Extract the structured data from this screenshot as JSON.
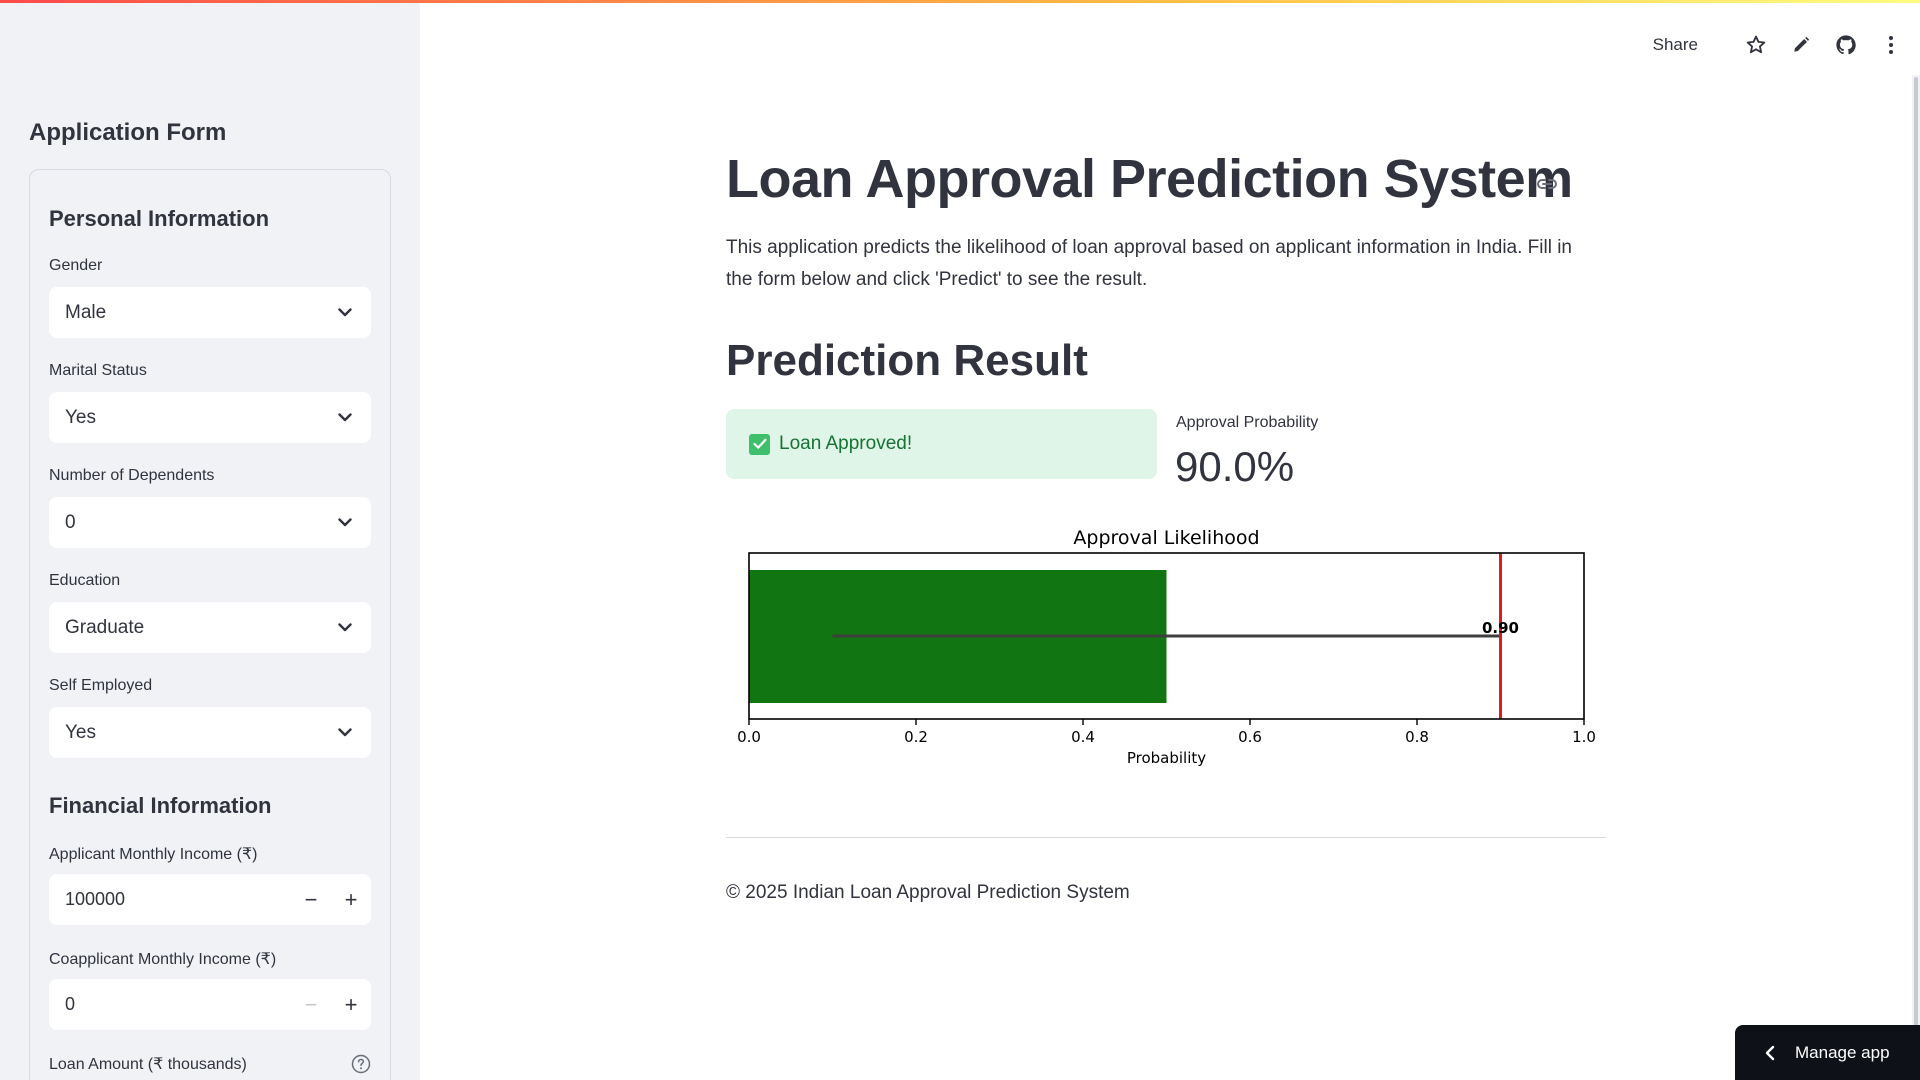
{
  "sidebar": {
    "title": "Application Form",
    "personal_heading": "Personal Information",
    "gender": {
      "label": "Gender",
      "value": "Male"
    },
    "marital": {
      "label": "Marital Status",
      "value": "Yes"
    },
    "dependents": {
      "label": "Number of Dependents",
      "value": "0"
    },
    "education": {
      "label": "Education",
      "value": "Graduate"
    },
    "self_employed": {
      "label": "Self Employed",
      "value": "Yes"
    },
    "financial_heading": "Financial Information",
    "applicant_income": {
      "label": "Applicant Monthly Income (₹)",
      "value": "100000"
    },
    "coapplicant_income": {
      "label": "Coapplicant Monthly Income (₹)",
      "value": "0"
    },
    "loan_amount": {
      "label": "Loan Amount (₹ thousands)"
    }
  },
  "toolbar": {
    "share_label": "Share"
  },
  "main": {
    "title": "Loan Approval Prediction System",
    "description": "This application predicts the likelihood of loan approval based on applicant information in India. Fill in the form below and click 'Predict' to see the result.",
    "result_heading": "Prediction Result",
    "alert_text": "Loan Approved!",
    "metric_label": "Approval Probability",
    "metric_value": "90.0%",
    "footer": "© 2025 Indian Loan Approval Prediction System"
  },
  "manage_app_label": "Manage app",
  "colors": {
    "bar": "#117511",
    "marker": "#e01b1b",
    "success_bg": "#dff5e8",
    "success_text": "#177233"
  },
  "chart_data": {
    "type": "bar",
    "orientation": "horizontal",
    "title": "Approval Likelihood",
    "xlabel": "Probability",
    "ylabel": "",
    "xlim": [
      0.0,
      1.0
    ],
    "xticks": [
      "0.0",
      "0.2",
      "0.4",
      "0.6",
      "0.8",
      "1.0"
    ],
    "bar_value": 0.5,
    "error_range": [
      0.1,
      0.9
    ],
    "marker_value": 0.9,
    "value_label": "0.90",
    "grid": false
  }
}
